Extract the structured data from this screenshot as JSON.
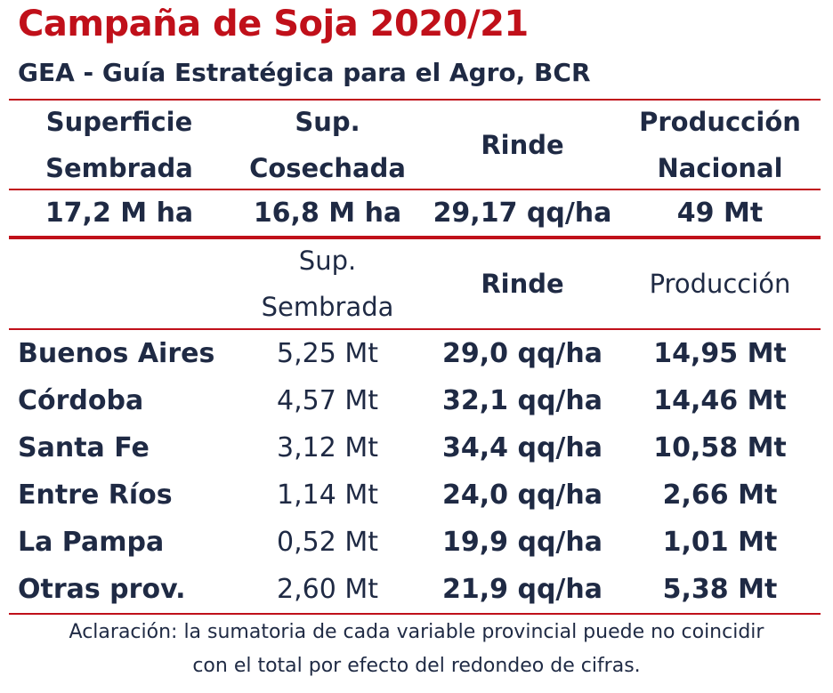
{
  "title": "Campaña de Soja 2020/21",
  "subtitle": "GEA - Guía Estratégica para el Agro, BCR",
  "colors": {
    "accent": "#c0101a",
    "text": "#1f2a44"
  },
  "national": {
    "headers": [
      {
        "line1": "Superficie",
        "line2": "Sembrada"
      },
      {
        "line1": "Sup.",
        "line2": "Cosechada"
      },
      {
        "line1": "Rinde",
        "line2": ""
      },
      {
        "line1": "Producción",
        "line2": "Nacional"
      }
    ],
    "values": [
      "17,2 M ha",
      "16,8 M ha",
      "29,17 qq/ha",
      "49 Mt"
    ]
  },
  "provincial": {
    "headers": [
      {
        "line1": "",
        "line2": ""
      },
      {
        "line1": "Sup.",
        "line2": "Sembrada"
      },
      {
        "line1": "Rinde",
        "line2": ""
      },
      {
        "line1": "Producción",
        "line2": ""
      }
    ],
    "rows": [
      {
        "province": "Buenos Aires",
        "sup": "5,25 Mt",
        "rinde": "29,0 qq/ha",
        "prod": "14,95 Mt"
      },
      {
        "province": "Córdoba",
        "sup": "4,57 Mt",
        "rinde": "32,1 qq/ha",
        "prod": "14,46 Mt"
      },
      {
        "province": "Santa Fe",
        "sup": "3,12 Mt",
        "rinde": "34,4 qq/ha",
        "prod": "10,58 Mt"
      },
      {
        "province": "Entre Ríos",
        "sup": "1,14 Mt",
        "rinde": "24,0 qq/ha",
        "prod": "2,66 Mt"
      },
      {
        "province": "La Pampa",
        "sup": "0,52 Mt",
        "rinde": "19,9 qq/ha",
        "prod": "1,01 Mt"
      },
      {
        "province": "Otras prov.",
        "sup": "2,60 Mt",
        "rinde": "21,9 qq/ha",
        "prod": "5,38 Mt"
      }
    ]
  },
  "note": {
    "line1": "Aclaración: la sumatoria de cada variable provincial puede no coincidir",
    "line2": "con el total por efecto del redondeo de cifras."
  }
}
